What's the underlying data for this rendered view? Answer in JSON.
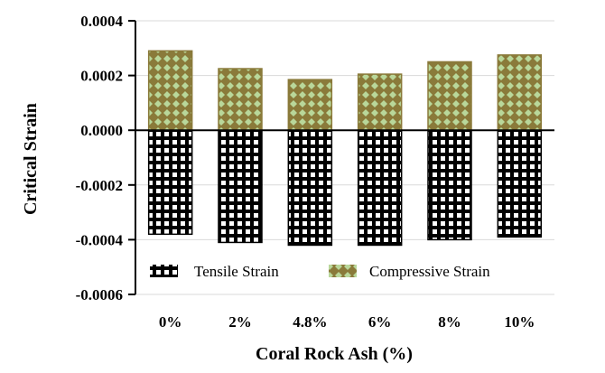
{
  "chart_data": {
    "type": "bar",
    "title": "",
    "xlabel": "Coral Rock Ash (%)",
    "ylabel": "Critical Strain",
    "categories": [
      "0%",
      "2%",
      "4.8%",
      "6%",
      "8%",
      "10%"
    ],
    "series": [
      {
        "name": "Tensile Strain",
        "values": [
          -0.00038,
          -0.00041,
          -0.00042,
          -0.00042,
          -0.0004,
          -0.00039
        ],
        "color": "#000000",
        "pattern": "white-grid-on-black"
      },
      {
        "name": "Compressive Strain",
        "values": [
          0.00029,
          0.000225,
          0.000185,
          0.000205,
          0.00025,
          0.000275
        ],
        "color": "#8a7a3a",
        "pattern": "light-green-diamonds-on-olive"
      }
    ],
    "ylim": [
      -0.0006,
      0.0004
    ],
    "yticks": [
      0.0004,
      0.0002,
      0.0,
      -0.0002,
      -0.0004,
      -0.0006
    ],
    "ytick_labels": [
      "0.0004",
      "0.0002",
      "0.0000",
      "-0.0002",
      "-0.0004",
      "-0.0006"
    ],
    "grid": true,
    "legend_position": "bottom-inside",
    "colors": {
      "compressive_fill": "#b9d79a",
      "compressive_border": "#8a7a3a",
      "tensile_fill": "#000000",
      "grid": "#d9d9d9"
    }
  }
}
